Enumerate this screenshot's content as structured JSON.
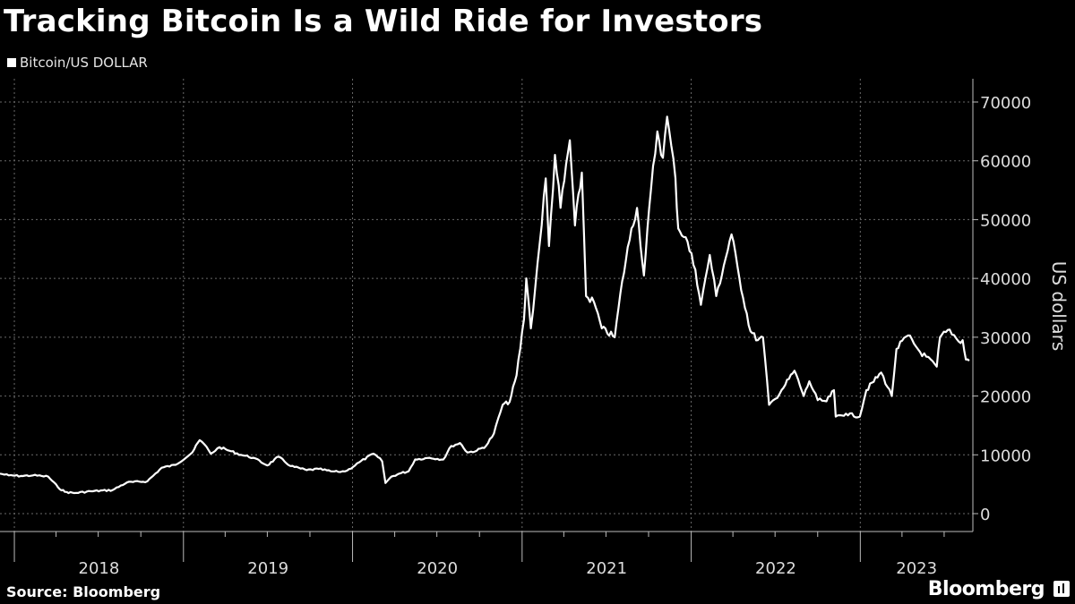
{
  "chart_data": {
    "type": "line",
    "title": "Tracking Bitcoin Is a Wild Ride for Investors",
    "ylabel": "US dollars",
    "ylim": [
      0,
      70000
    ],
    "yticks": [
      0,
      10000,
      20000,
      30000,
      40000,
      50000,
      60000,
      70000
    ],
    "xlim": [
      "2017-12-01",
      "2023-09-01"
    ],
    "year_ticks": [
      "2018",
      "2019",
      "2020",
      "2021",
      "2022",
      "2023"
    ],
    "grid": true,
    "legend_position": "top-left",
    "series": [
      {
        "name": "Bitcoin/US DOLLAR",
        "color": "#ffffff",
        "points": [
          [
            "2017-12-01",
            6800
          ],
          [
            "2017-12-20",
            6500
          ],
          [
            "2018-01-15",
            6400
          ],
          [
            "2018-02-10",
            6500
          ],
          [
            "2018-03-01",
            6400
          ],
          [
            "2018-03-15",
            6300
          ],
          [
            "2018-04-05",
            4500
          ],
          [
            "2018-04-20",
            3700
          ],
          [
            "2018-05-10",
            3500
          ],
          [
            "2018-06-15",
            3800
          ],
          [
            "2018-08-01",
            4000
          ],
          [
            "2018-09-01",
            5300
          ],
          [
            "2018-10-15",
            5500
          ],
          [
            "2018-11-15",
            7800
          ],
          [
            "2018-12-15",
            8300
          ],
          [
            "2019-01-20",
            10400
          ],
          [
            "2019-02-05",
            12500
          ],
          [
            "2019-02-15",
            11800
          ],
          [
            "2019-03-01",
            10200
          ],
          [
            "2019-03-20",
            11300
          ],
          [
            "2019-04-10",
            10700
          ],
          [
            "2019-05-05",
            10000
          ],
          [
            "2019-06-01",
            9500
          ],
          [
            "2019-07-01",
            8200
          ],
          [
            "2019-07-25",
            9700
          ],
          [
            "2019-08-20",
            8100
          ],
          [
            "2019-09-24",
            7400
          ],
          [
            "2019-10-20",
            7600
          ],
          [
            "2019-11-15",
            7200
          ],
          [
            "2019-12-01",
            7100
          ],
          [
            "2019-12-20",
            7300
          ],
          [
            "2020-01-15",
            8700
          ],
          [
            "2020-02-15",
            10200
          ],
          [
            "2020-02-25",
            9600
          ],
          [
            "2020-03-05",
            8900
          ],
          [
            "2020-03-12",
            5200
          ],
          [
            "2020-03-25",
            6300
          ],
          [
            "2020-04-15",
            6900
          ],
          [
            "2020-05-01",
            7200
          ],
          [
            "2020-05-15",
            9200
          ],
          [
            "2020-06-15",
            9500
          ],
          [
            "2020-07-15",
            9200
          ],
          [
            "2020-08-01",
            11500
          ],
          [
            "2020-08-20",
            12000
          ],
          [
            "2020-09-05",
            10400
          ],
          [
            "2020-09-25",
            10700
          ],
          [
            "2020-10-15",
            11500
          ],
          [
            "2020-11-01",
            13600
          ],
          [
            "2020-11-20",
            18500
          ],
          [
            "2020-12-05",
            19000
          ],
          [
            "2020-12-20",
            23500
          ],
          [
            "2021-01-05",
            33000
          ],
          [
            "2021-01-10",
            40000
          ],
          [
            "2021-01-20",
            31500
          ],
          [
            "2021-02-08",
            46000
          ],
          [
            "2021-02-21",
            57000
          ],
          [
            "2021-02-28",
            45500
          ],
          [
            "2021-03-13",
            61000
          ],
          [
            "2021-03-25",
            52000
          ],
          [
            "2021-04-14",
            63500
          ],
          [
            "2021-04-25",
            49000
          ],
          [
            "2021-05-10",
            58000
          ],
          [
            "2021-05-19",
            37000
          ],
          [
            "2021-06-05",
            36000
          ],
          [
            "2021-06-22",
            31500
          ],
          [
            "2021-07-20",
            30000
          ],
          [
            "2021-08-05",
            39500
          ],
          [
            "2021-08-25",
            48500
          ],
          [
            "2021-09-06",
            52000
          ],
          [
            "2021-09-21",
            40500
          ],
          [
            "2021-10-06",
            55000
          ],
          [
            "2021-10-20",
            65000
          ],
          [
            "2021-11-01",
            60500
          ],
          [
            "2021-11-10",
            67500
          ],
          [
            "2021-11-28",
            57000
          ],
          [
            "2021-12-04",
            48500
          ],
          [
            "2021-12-20",
            47000
          ],
          [
            "2022-01-10",
            41500
          ],
          [
            "2022-01-22",
            35500
          ],
          [
            "2022-02-10",
            44000
          ],
          [
            "2022-02-24",
            37000
          ],
          [
            "2022-03-29",
            47500
          ],
          [
            "2022-04-15",
            40000
          ],
          [
            "2022-05-09",
            31000
          ],
          [
            "2022-05-25",
            29500
          ],
          [
            "2022-06-05",
            30000
          ],
          [
            "2022-06-18",
            18500
          ],
          [
            "2022-07-01",
            19500
          ],
          [
            "2022-07-15",
            21000
          ],
          [
            "2022-08-12",
            24300
          ],
          [
            "2022-09-01",
            20000
          ],
          [
            "2022-09-13",
            22500
          ],
          [
            "2022-10-01",
            19300
          ],
          [
            "2022-10-20",
            19100
          ],
          [
            "2022-11-05",
            21000
          ],
          [
            "2022-11-09",
            16500
          ],
          [
            "2022-12-01",
            17000
          ],
          [
            "2022-12-31",
            16500
          ],
          [
            "2023-01-14",
            21000
          ],
          [
            "2023-02-15",
            24000
          ],
          [
            "2023-03-10",
            20000
          ],
          [
            "2023-03-20",
            28000
          ],
          [
            "2023-04-14",
            30300
          ],
          [
            "2023-05-10",
            27500
          ],
          [
            "2023-06-15",
            25000
          ],
          [
            "2023-06-22",
            30000
          ],
          [
            "2023-07-13",
            31300
          ],
          [
            "2023-08-01",
            29300
          ],
          [
            "2023-08-10",
            29500
          ],
          [
            "2023-08-17",
            26200
          ],
          [
            "2023-08-24",
            26000
          ]
        ]
      }
    ]
  },
  "source": "Source: Bloomberg",
  "brand": "Bloomberg"
}
